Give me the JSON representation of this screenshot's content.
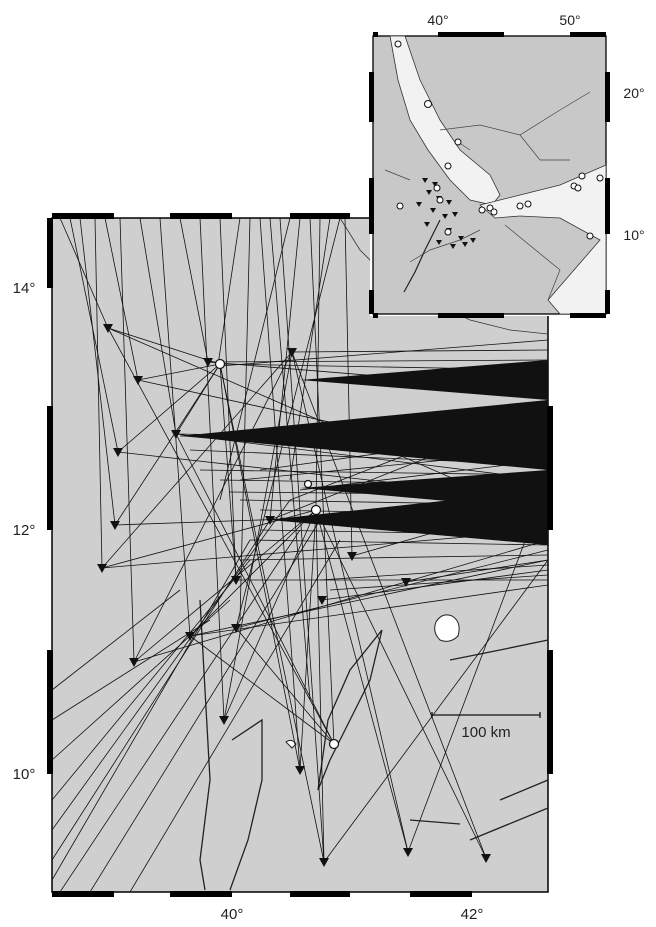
{
  "main_map": {
    "lat_ticks": [
      {
        "label": "14°",
        "value": 14
      },
      {
        "label": "12°",
        "value": 12
      },
      {
        "label": "10°",
        "value": 10
      }
    ],
    "lon_ticks": [
      {
        "label": "40°",
        "value": 40
      },
      {
        "label": "42°",
        "value": 42
      }
    ],
    "scale_bar_label": "100 km",
    "colors": {
      "land": "#cfcfcf",
      "ink": "#111111",
      "frame": "#000000"
    }
  },
  "inset_map": {
    "lon_ticks": [
      {
        "label": "40°",
        "value": 40
      },
      {
        "label": "50°",
        "value": 50
      }
    ],
    "lat_ticks": [
      {
        "label": "20°",
        "value": 20
      },
      {
        "label": "10°",
        "value": 10
      }
    ],
    "colors": {
      "land": "#c8c8c8",
      "sea": "#f2f2f2"
    }
  },
  "legend_symbols": {
    "station": "inverted-triangle",
    "event": "circle"
  }
}
